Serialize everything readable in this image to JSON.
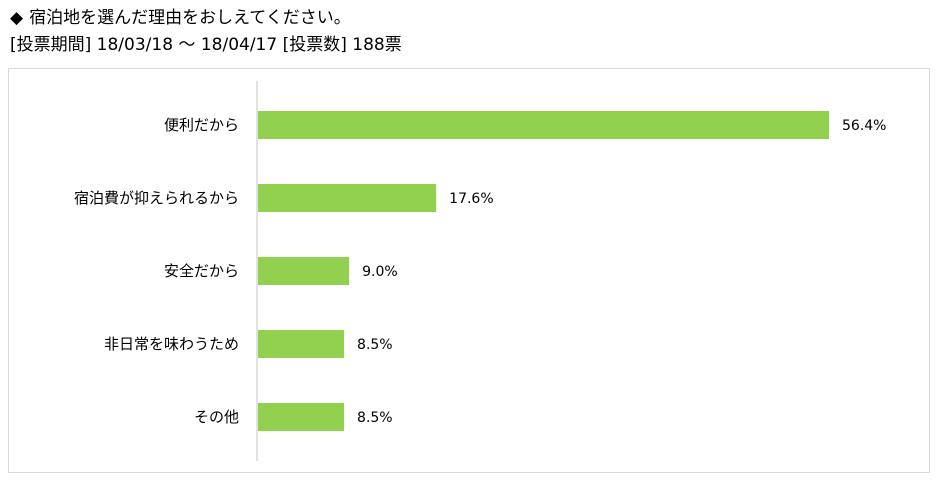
{
  "header": {
    "diamond": "◆",
    "title": "宿泊地を選んだ理由をおしえてください。",
    "period_label": "[投票期間]",
    "period": "18/03/18 ～ 18/04/17",
    "count_label": "[投票数]",
    "count": "188票"
  },
  "colors": {
    "bar": "#92d050",
    "axis": "#d9d9d9",
    "frame": "#d9d9d9"
  },
  "chart_data": {
    "type": "bar",
    "orientation": "horizontal",
    "categories": [
      "便利だから",
      "宿泊費が抑えられるから",
      "安全だから",
      "非日常を味わうため",
      "その他"
    ],
    "values": [
      56.4,
      17.6,
      9.0,
      8.5,
      8.5
    ],
    "value_labels": [
      "56.4%",
      "17.6%",
      "9.0%",
      "8.5%",
      "8.5%"
    ],
    "unit": "%",
    "title": "",
    "xlabel": "",
    "ylabel": "",
    "grid": false,
    "legend": "none"
  }
}
